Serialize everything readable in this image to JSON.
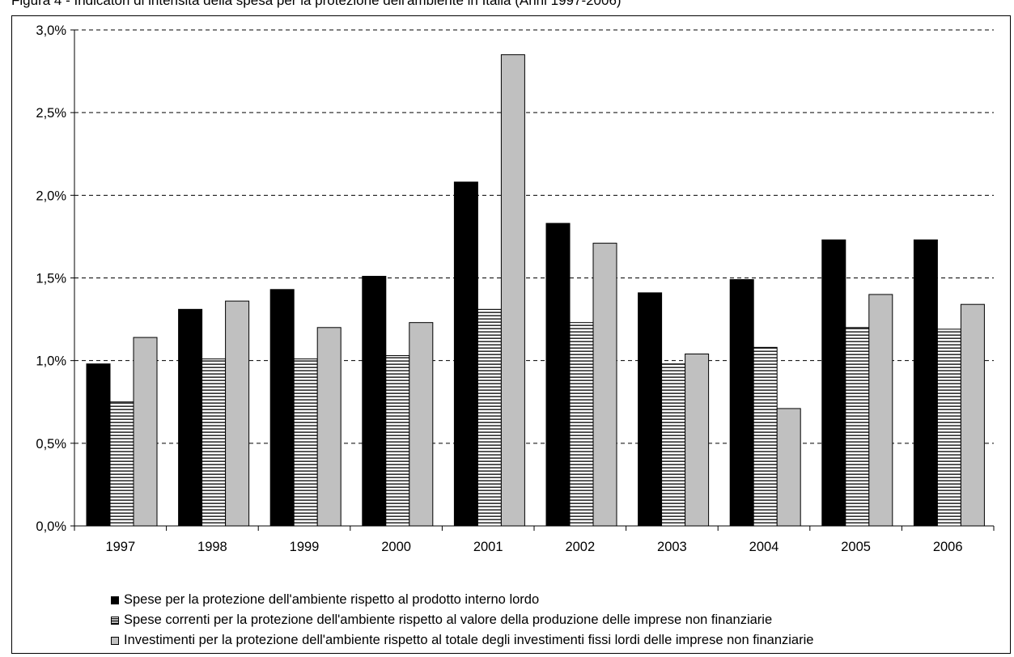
{
  "header": {
    "caption": "Figura 4 - Indicatori di intensità della spesa per la protezione dell'ambiente in Italia (Anni 1997-2006)"
  },
  "colors": {
    "series1": "#000000",
    "series2_fill": "#ffffff",
    "series2_stripes": "#000000",
    "series3": "#c0c0c0",
    "grid": "#000000"
  },
  "chart_data": {
    "type": "bar",
    "title": "",
    "xlabel": "",
    "ylabel": "",
    "ylim": [
      0,
      3.0
    ],
    "yticks": [
      "0,0%",
      "0,5%",
      "1,0%",
      "1,5%",
      "2,0%",
      "2,5%",
      "3,0%"
    ],
    "ytick_values": [
      0,
      0.5,
      1.0,
      1.5,
      2.0,
      2.5,
      3.0
    ],
    "grid": "horizontal dashed",
    "legend_position": "bottom",
    "categories": [
      "1997",
      "1998",
      "1999",
      "2000",
      "2001",
      "2002",
      "2003",
      "2004",
      "2005",
      "2006"
    ],
    "series": [
      {
        "name": "Spese per la protezione dell'ambiente rispetto al prodotto interno lordo",
        "pattern": "solid-black",
        "values": [
          0.98,
          1.31,
          1.43,
          1.51,
          2.08,
          1.83,
          1.41,
          1.49,
          1.73,
          1.73
        ]
      },
      {
        "name": "Spese correnti per la protezione dell'ambiente rispetto al valore della produzione delle imprese non finanziarie",
        "pattern": "horizontal-lines",
        "values": [
          0.75,
          1.01,
          1.01,
          1.03,
          1.31,
          1.23,
          0.98,
          1.08,
          1.2,
          1.19
        ]
      },
      {
        "name": "Investimenti per la protezione dell'ambiente rispetto al totale degli investimenti fissi lordi delle imprese non finanziarie",
        "pattern": "solid-grey",
        "values": [
          1.14,
          1.36,
          1.2,
          1.23,
          2.85,
          1.71,
          1.04,
          0.71,
          1.4,
          1.34
        ]
      }
    ]
  }
}
